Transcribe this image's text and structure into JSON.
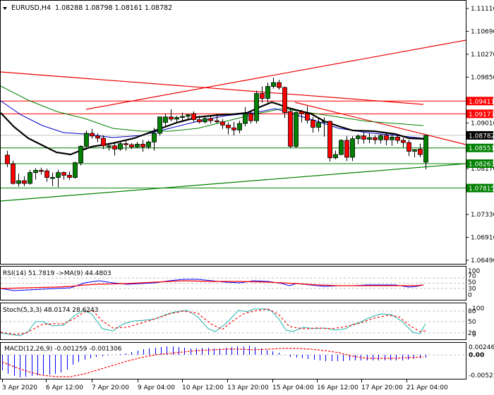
{
  "header": {
    "symbol": "EURUSD,H4",
    "ohlc": "1.08288 1.08798 1.08161 1.08782",
    "arrow_icon": "triangle-down"
  },
  "colors": {
    "bull": "#008000",
    "bear": "#ff0000",
    "ma_black": "#000000",
    "ma_blue": "#0000c8",
    "ma_green": "#008000",
    "ma_red": "#dd0000",
    "hline_red": "#ff0000",
    "hline_green": "#008000",
    "trend_red": "#ee0000",
    "trend_green": "#008000",
    "current_price_line": "#c0c0c0",
    "rsi_line": "#0000ff",
    "rsi_ma": "#ff0000",
    "stoch_main": "#20b2aa",
    "stoch_signal": "#ff0000",
    "macd_hist": "#0000ff",
    "macd_signal": "#ff0000"
  },
  "price_axis": {
    "ticks": [
      "1.11110",
      "1.10690",
      "1.10270",
      "1.09850",
      "1.09430",
      "1.09010",
      "1.08590",
      "1.08170",
      "1.07750",
      "1.07330",
      "1.06910",
      "1.06490"
    ],
    "visible_ticks": [
      "1.11110",
      "1.10690",
      "1.10270",
      "1.09850",
      "1.09010",
      "1.08170",
      "1.07330",
      "1.06910",
      "1.06490"
    ],
    "labels": [
      {
        "value": "1.09411",
        "bg": "#ff0000",
        "fg": "#ffffff"
      },
      {
        "value": "1.09177",
        "bg": "#ff0000",
        "fg": "#ffffff"
      },
      {
        "value": "1.08782",
        "bg": "#000000",
        "fg": "#ffffff"
      },
      {
        "value": "1.08551",
        "bg": "#008000",
        "fg": "#ffffff"
      },
      {
        "value": "1.08263",
        "bg": "#008000",
        "fg": "#ffffff"
      },
      {
        "value": "1.07815",
        "bg": "#008000",
        "fg": "#ffffff"
      }
    ]
  },
  "time_axis": {
    "labels": [
      "3 Apr 2020",
      "6 Apr 12:00",
      "7 Apr 20:00",
      "9 Apr 04:00",
      "10 Apr 12:00",
      "13 Apr 20:00",
      "15 Apr 04:00",
      "16 Apr 12:00",
      "17 Apr 20:00",
      "21 Apr 04:00"
    ]
  },
  "rsi": {
    "title": "RSI(14) 51.7819  ->MA(9) 44.4803",
    "levels": [
      "100",
      "70",
      "50",
      "30",
      "0"
    ]
  },
  "stoch": {
    "title": "Stoch(5,3,3) 48.0174 28.6243",
    "levels": [
      "100",
      "80",
      "50",
      "20",
      "0"
    ]
  },
  "macd": {
    "title": "MACD(12,26,9) -0.001259 -0.001306",
    "levels": [
      "0.002463",
      "0.00",
      "-0.005237"
    ]
  },
  "chart_data": {
    "type": "candlestick",
    "title": "EURUSD,H4",
    "ohlc_last": {
      "open": 1.08288,
      "high": 1.08798,
      "low": 1.08161,
      "close": 1.08782
    },
    "xlabel": "",
    "ylabel": "",
    "ylim": [
      1.0635,
      1.1125
    ],
    "x_tick_labels": [
      "3 Apr 2020",
      "6 Apr 12:00",
      "7 Apr 20:00",
      "9 Apr 04:00",
      "10 Apr 12:00",
      "13 Apr 20:00",
      "15 Apr 04:00",
      "16 Apr 12:00",
      "17 Apr 20:00",
      "21 Apr 04:00"
    ],
    "y_tick_labels": [
      "1.11110",
      "1.10690",
      "1.10270",
      "1.09850",
      "1.09010",
      "1.08170",
      "1.07330",
      "1.06910",
      "1.06490"
    ],
    "horizontal_levels": [
      1.09411,
      1.09177,
      1.08782,
      1.08551,
      1.08263,
      1.07815
    ],
    "candles": [
      [
        1.0842,
        1.085,
        1.082,
        1.0826
      ],
      [
        1.0826,
        1.0832,
        1.0788,
        1.079
      ],
      [
        1.079,
        1.0808,
        1.0784,
        1.0795
      ],
      [
        1.0795,
        1.0803,
        1.0785,
        1.079
      ],
      [
        1.079,
        1.0815,
        1.0788,
        1.081
      ],
      [
        1.081,
        1.0818,
        1.0797,
        1.0814
      ],
      [
        1.0814,
        1.0819,
        1.0806,
        1.0813
      ],
      [
        1.0813,
        1.0817,
        1.0793,
        1.0801
      ],
      [
        1.0801,
        1.081,
        1.0785,
        1.0801
      ],
      [
        1.0801,
        1.0815,
        1.0783,
        1.081
      ],
      [
        1.081,
        1.0812,
        1.0797,
        1.0805
      ],
      [
        1.0805,
        1.0812,
        1.0796,
        1.0801
      ],
      [
        1.0801,
        1.083,
        1.0799,
        1.0828
      ],
      [
        1.0828,
        1.086,
        1.0823,
        1.0858
      ],
      [
        1.0858,
        1.0887,
        1.0852,
        1.0882
      ],
      [
        1.0882,
        1.089,
        1.0872,
        1.0877
      ],
      [
        1.0877,
        1.0882,
        1.0866,
        1.0873
      ],
      [
        1.0873,
        1.0878,
        1.0853,
        1.0859
      ],
      [
        1.0859,
        1.0863,
        1.085,
        1.0859
      ],
      [
        1.0859,
        1.0866,
        1.0841,
        1.0853
      ],
      [
        1.0853,
        1.0866,
        1.085,
        1.0863
      ],
      [
        1.0863,
        1.0868,
        1.085,
        1.0861
      ],
      [
        1.0861,
        1.0864,
        1.0853,
        1.0857
      ],
      [
        1.0857,
        1.0866,
        1.0855,
        1.0862
      ],
      [
        1.0862,
        1.087,
        1.0848,
        1.0857
      ],
      [
        1.0857,
        1.0869,
        1.0853,
        1.0866
      ],
      [
        1.0866,
        1.0892,
        1.085,
        1.0882
      ],
      [
        1.0882,
        1.0905,
        1.0878,
        1.0912
      ],
      [
        1.0902,
        1.0918,
        1.0895,
        1.0912
      ],
      [
        1.0912,
        1.0926,
        1.0904,
        1.0908
      ],
      [
        1.0908,
        1.0914,
        1.09,
        1.0911
      ],
      [
        1.0911,
        1.092,
        1.0905,
        1.0913
      ],
      [
        1.0913,
        1.0917,
        1.0907,
        1.0916
      ],
      [
        1.0918,
        1.0922,
        1.0902,
        1.0907
      ],
      [
        1.0907,
        1.0914,
        1.09,
        1.0903
      ],
      [
        1.0903,
        1.0912,
        1.09,
        1.0909
      ],
      [
        1.0909,
        1.0914,
        1.09,
        1.0905
      ],
      [
        1.0905,
        1.0918,
        1.09,
        1.0903
      ],
      [
        1.0903,
        1.0908,
        1.089,
        1.0897
      ],
      [
        1.0897,
        1.0902,
        1.088,
        1.0892
      ],
      [
        1.0892,
        1.0903,
        1.0878,
        1.0888
      ],
      [
        1.0888,
        1.0905,
        1.0882,
        1.09
      ],
      [
        1.09,
        1.093,
        1.0895,
        1.0918
      ],
      [
        1.0918,
        1.0923,
        1.09,
        1.0905
      ],
      [
        1.0905,
        1.096,
        1.09,
        1.0955
      ],
      [
        1.0955,
        1.0968,
        1.0938,
        1.0946
      ],
      [
        1.0946,
        1.0975,
        1.0938,
        1.0968
      ],
      [
        1.0968,
        1.0984,
        1.0964,
        1.0975
      ],
      [
        1.0975,
        1.098,
        1.0962,
        1.0966
      ],
      [
        1.0966,
        1.0968,
        1.091,
        1.092
      ],
      [
        1.0922,
        1.0926,
        1.0855,
        1.0858
      ],
      [
        1.0858,
        1.0922,
        1.0855,
        1.092
      ],
      [
        1.0922,
        1.0925,
        1.0902,
        1.0918
      ],
      [
        1.0918,
        1.0932,
        1.09,
        1.0906
      ],
      [
        1.0906,
        1.0912,
        1.0883,
        1.0893
      ],
      [
        1.0893,
        1.0909,
        1.0885,
        1.0902
      ],
      [
        1.0902,
        1.0911,
        1.0876,
        1.0904
      ],
      [
        1.0904,
        1.0905,
        1.083,
        1.0837
      ],
      [
        1.0837,
        1.085,
        1.0834,
        1.0843
      ],
      [
        1.0843,
        1.0871,
        1.0842,
        1.0869
      ],
      [
        1.0869,
        1.0877,
        1.0831,
        1.0838
      ],
      [
        1.0838,
        1.0877,
        1.0831,
        1.0872
      ],
      [
        1.0872,
        1.088,
        1.0862,
        1.0877
      ],
      [
        1.0877,
        1.0883,
        1.0863,
        1.0871
      ],
      [
        1.0871,
        1.0882,
        1.0864,
        1.0874
      ],
      [
        1.0874,
        1.0878,
        1.0862,
        1.087
      ],
      [
        1.087,
        1.088,
        1.0863,
        1.0878
      ],
      [
        1.0878,
        1.0882,
        1.086,
        1.087
      ],
      [
        1.087,
        1.088,
        1.0859,
        1.0875
      ],
      [
        1.0875,
        1.0878,
        1.0863,
        1.0869
      ],
      [
        1.0869,
        1.0874,
        1.0856,
        1.0865
      ],
      [
        1.0865,
        1.087,
        1.084,
        1.0849
      ],
      [
        1.0849,
        1.0853,
        1.0838,
        1.0852
      ],
      [
        1.0853,
        1.0863,
        1.0838,
        1.0843
      ],
      [
        1.0829,
        1.088,
        1.0816,
        1.0878
      ]
    ],
    "series_ma": [
      {
        "name": "MA black (fast)",
        "values": [
          1.0905,
          1.087,
          1.083,
          1.0812,
          1.0812,
          1.0845,
          1.0878,
          1.09,
          1.0915,
          1.0925,
          1.0905,
          1.089,
          1.088,
          1.0862,
          1.0858
        ]
      },
      {
        "name": "MA blue",
        "values": [
          1.095,
          1.091,
          1.0885,
          1.088,
          1.0886,
          1.0895,
          1.0905,
          1.092,
          1.0925,
          1.0905,
          1.0895,
          1.088
        ]
      },
      {
        "name": "MA green",
        "values": [
          1.099,
          1.0955,
          1.0925,
          1.0918,
          1.0922,
          1.0928,
          1.093,
          1.092,
          1.09
        ]
      },
      {
        "name": "MA red (slow)",
        "values": [
          1.1,
          1.0985,
          1.097,
          1.0958,
          1.095,
          1.0945,
          1.094
        ]
      }
    ],
    "rsi": {
      "value": 51.7819,
      "ma": 44.4803,
      "levels": [
        70,
        50,
        30
      ]
    },
    "stoch": {
      "k": 48.0174,
      "d": 28.6243,
      "levels": [
        80,
        50,
        20
      ]
    },
    "macd": {
      "main": -0.001259,
      "signal": -0.001306,
      "range": [
        -0.005237,
        0.002463
      ]
    }
  }
}
